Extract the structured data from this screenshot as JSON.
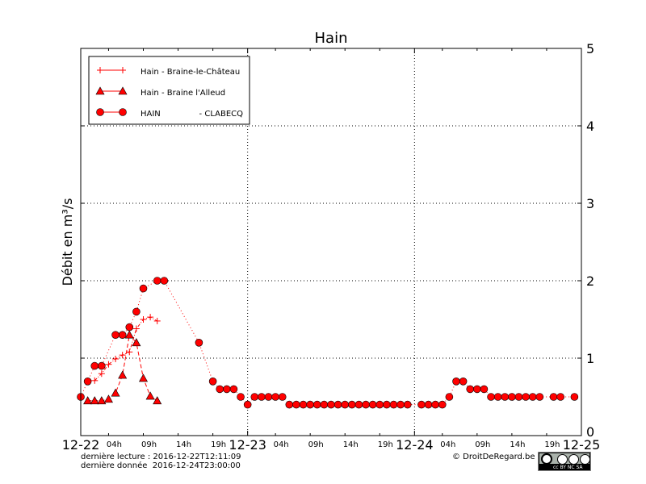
{
  "chart_data": {
    "type": "line",
    "title": "Hain",
    "ylabel": "Débit en m³/s",
    "xlabel": "",
    "xlim": [
      "2016-12-22T00:00",
      "2016-12-25T00:00"
    ],
    "ylim": [
      0,
      5
    ],
    "yticks": [
      "0",
      "1",
      "2",
      "3",
      "4",
      "5"
    ],
    "xticks_major": [
      {
        "t": "2016-12-22T00:00",
        "label": "12-22"
      },
      {
        "t": "2016-12-23T00:00",
        "label": "12-23"
      },
      {
        "t": "2016-12-24T00:00",
        "label": "12-24"
      },
      {
        "t": "2016-12-25T00:00",
        "label": "12-25"
      }
    ],
    "xticks_minor": [
      "04h",
      "09h",
      "14h",
      "19h"
    ],
    "grid": true,
    "legend_position": "top-left",
    "color": "#ff0000",
    "series": [
      {
        "name": "Hain - Braine-le-Château",
        "marker": "plus",
        "linestyle": "dashdot",
        "points": [
          [
            "2016-12-22T02:00",
            0.71
          ],
          [
            "2016-12-22T03:00",
            0.8
          ],
          [
            "2016-12-22T04:00",
            0.92
          ],
          [
            "2016-12-22T05:00",
            0.99
          ],
          [
            "2016-12-22T06:00",
            1.04
          ],
          [
            "2016-12-22T07:00",
            1.08
          ],
          [
            "2016-12-22T08:00",
            1.38
          ],
          [
            "2016-12-22T09:00",
            1.5
          ],
          [
            "2016-12-22T10:00",
            1.53
          ],
          [
            "2016-12-22T11:00",
            1.48
          ]
        ]
      },
      {
        "name": "Hain - Braine l'Alleud",
        "marker": "triangle",
        "linestyle": "dashed",
        "points": [
          [
            "2016-12-22T01:00",
            0.45
          ],
          [
            "2016-12-22T02:00",
            0.45
          ],
          [
            "2016-12-22T03:00",
            0.45
          ],
          [
            "2016-12-22T04:00",
            0.47
          ],
          [
            "2016-12-22T05:00",
            0.55
          ],
          [
            "2016-12-22T06:00",
            0.78
          ],
          [
            "2016-12-22T07:00",
            1.3
          ],
          [
            "2016-12-22T08:00",
            1.2
          ],
          [
            "2016-12-22T09:00",
            0.74
          ],
          [
            "2016-12-22T10:00",
            0.51
          ],
          [
            "2016-12-22T11:00",
            0.45
          ]
        ]
      },
      {
        "name": "HAIN                - CLABECQ",
        "name_left": "HAIN",
        "name_right": "- CLABECQ",
        "marker": "circle",
        "linestyle": "dotted",
        "points": [
          [
            "2016-12-22T00:00",
            0.5
          ],
          [
            "2016-12-22T01:00",
            0.7
          ],
          [
            "2016-12-22T02:00",
            0.9
          ],
          [
            "2016-12-22T03:00",
            0.9
          ],
          [
            "2016-12-22T05:00",
            1.3
          ],
          [
            "2016-12-22T06:00",
            1.3
          ],
          [
            "2016-12-22T07:00",
            1.4
          ],
          [
            "2016-12-22T08:00",
            1.6
          ],
          [
            "2016-12-22T09:00",
            1.9
          ],
          [
            "2016-12-22T11:00",
            2.0
          ],
          [
            "2016-12-22T12:00",
            2.0
          ],
          [
            "2016-12-22T17:00",
            1.2
          ],
          [
            "2016-12-22T19:00",
            0.7
          ],
          [
            "2016-12-22T20:00",
            0.6
          ],
          [
            "2016-12-22T21:00",
            0.6
          ],
          [
            "2016-12-22T22:00",
            0.6
          ],
          [
            "2016-12-22T23:00",
            0.5
          ],
          [
            "2016-12-23T00:00",
            0.4
          ],
          [
            "2016-12-23T01:00",
            0.5
          ],
          [
            "2016-12-23T02:00",
            0.5
          ],
          [
            "2016-12-23T03:00",
            0.5
          ],
          [
            "2016-12-23T04:00",
            0.5
          ],
          [
            "2016-12-23T05:00",
            0.5
          ],
          [
            "2016-12-23T06:00",
            0.4
          ],
          [
            "2016-12-23T07:00",
            0.4
          ],
          [
            "2016-12-23T08:00",
            0.4
          ],
          [
            "2016-12-23T09:00",
            0.4
          ],
          [
            "2016-12-23T10:00",
            0.4
          ],
          [
            "2016-12-23T11:00",
            0.4
          ],
          [
            "2016-12-23T12:00",
            0.4
          ],
          [
            "2016-12-23T13:00",
            0.4
          ],
          [
            "2016-12-23T14:00",
            0.4
          ],
          [
            "2016-12-23T15:00",
            0.4
          ],
          [
            "2016-12-23T16:00",
            0.4
          ],
          [
            "2016-12-23T17:00",
            0.4
          ],
          [
            "2016-12-23T18:00",
            0.4
          ],
          [
            "2016-12-23T19:00",
            0.4
          ],
          [
            "2016-12-23T20:00",
            0.4
          ],
          [
            "2016-12-23T21:00",
            0.4
          ],
          [
            "2016-12-23T22:00",
            0.4
          ],
          [
            "2016-12-23T23:00",
            0.4
          ],
          [
            "2016-12-24T01:00",
            0.4
          ],
          [
            "2016-12-24T02:00",
            0.4
          ],
          [
            "2016-12-24T03:00",
            0.4
          ],
          [
            "2016-12-24T04:00",
            0.4
          ],
          [
            "2016-12-24T05:00",
            0.5
          ],
          [
            "2016-12-24T06:00",
            0.7
          ],
          [
            "2016-12-24T07:00",
            0.7
          ],
          [
            "2016-12-24T08:00",
            0.6
          ],
          [
            "2016-12-24T09:00",
            0.6
          ],
          [
            "2016-12-24T10:00",
            0.6
          ],
          [
            "2016-12-24T11:00",
            0.5
          ],
          [
            "2016-12-24T12:00",
            0.5
          ],
          [
            "2016-12-24T13:00",
            0.5
          ],
          [
            "2016-12-24T14:00",
            0.5
          ],
          [
            "2016-12-24T15:00",
            0.5
          ],
          [
            "2016-12-24T16:00",
            0.5
          ],
          [
            "2016-12-24T17:00",
            0.5
          ],
          [
            "2016-12-24T18:00",
            0.5
          ],
          [
            "2016-12-24T20:00",
            0.5
          ],
          [
            "2016-12-24T21:00",
            0.5
          ],
          [
            "2016-12-24T23:00",
            0.5
          ]
        ]
      }
    ]
  },
  "footer": {
    "last_read": "dernière lecture : 2016-12-22T12:11:09",
    "last_data": "dernière donnée  2016-12-24T23:00:00",
    "copyright": "© DroitDeRegard.be",
    "license_badge": "cc BY NC SA"
  }
}
